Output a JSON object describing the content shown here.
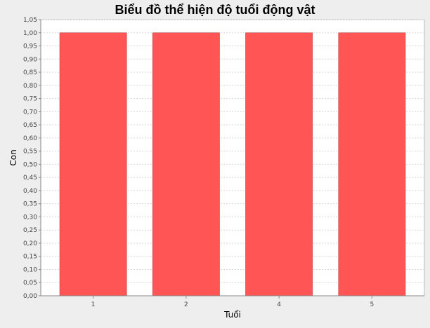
{
  "chart_data": {
    "type": "bar",
    "title": "Biểu đồ thể hiện độ tuổi động vật",
    "xlabel": "Tuổi",
    "ylabel": "Con",
    "categories": [
      "1",
      "2",
      "4",
      "5"
    ],
    "values": [
      1.0,
      1.0,
      1.0,
      1.0
    ],
    "ylim": [
      0,
      1.05
    ],
    "y_tick_step": 0.05,
    "y_tick_decimal_separator": ",",
    "grid": true,
    "bar_color": "#ff5555",
    "plot_background": "#ffffff",
    "page_background": "#eeeeee",
    "gridline_color": "#d8d8d8"
  }
}
